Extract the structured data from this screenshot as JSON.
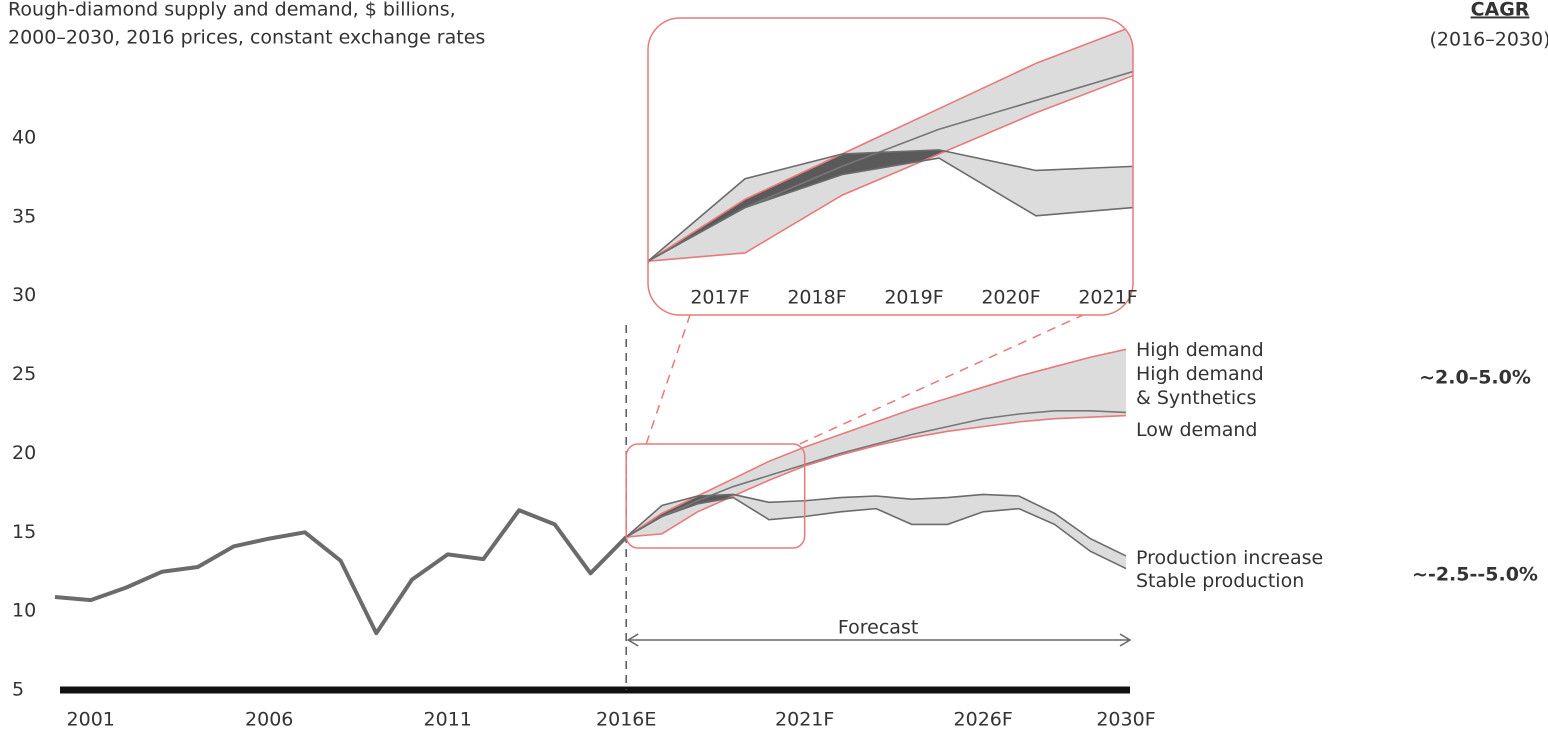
{
  "chart_data": {
    "type": "line",
    "title": "Rough-diamond supply and demand, $ billions,",
    "subtitle": "2000–2030, 2016 prices, constant exchange rates",
    "annotation": "Forecast",
    "cagr_title": "CAGR",
    "cagr_period": "(2016–2030)",
    "cagr_labels": [
      "~2.0–5.0%",
      "~-2.5--5.0%"
    ],
    "xlim": [
      2000,
      2030
    ],
    "ylim": [
      5,
      40
    ],
    "yticks": [
      5,
      10,
      15,
      20,
      25,
      30,
      35,
      40
    ],
    "xticks": [
      2001,
      2006,
      2011,
      {
        "value": 2016,
        "label": "2016E"
      },
      {
        "value": 2021,
        "label": "2021F"
      },
      {
        "value": 2026,
        "label": "2026F"
      },
      {
        "value": 2030,
        "label": "2030F"
      }
    ],
    "series": [
      {
        "color": "#6b6b6b",
        "x": [
          2000,
          2001,
          2002,
          2003,
          2004,
          2005,
          2006,
          2007,
          2008,
          2009,
          2010,
          2011,
          2012,
          2013,
          2014,
          2015,
          2016
        ],
        "values": [
          10.9,
          10.7,
          11.5,
          12.5,
          12.8,
          14.1,
          14.6,
          15.0,
          13.2,
          8.6,
          12.0,
          13.6,
          13.3,
          16.4,
          15.5,
          12.4,
          14.7
        ]
      },
      {
        "name": "High demand",
        "color": "#e87a7a",
        "x": [
          2016,
          2017,
          2018,
          2019,
          2020,
          2021,
          2022,
          2023,
          2024,
          2025,
          2026,
          2027,
          2028,
          2029,
          2030
        ],
        "values": [
          14.7,
          16.2,
          17.3,
          18.4,
          19.5,
          20.4,
          21.2,
          22.0,
          22.8,
          23.5,
          24.2,
          24.9,
          25.5,
          26.1,
          26.6
        ]
      },
      {
        "name": "High demand & Synthetics",
        "color": "#777777",
        "x": [
          2016,
          2017,
          2018,
          2019,
          2020,
          2021,
          2022,
          2023,
          2024,
          2025,
          2026,
          2027,
          2028,
          2029,
          2030
        ],
        "values": [
          14.7,
          16.0,
          17.0,
          17.9,
          18.6,
          19.3,
          20.0,
          20.6,
          21.2,
          21.7,
          22.2,
          22.5,
          22.7,
          22.7,
          22.6
        ]
      },
      {
        "name": "Low demand",
        "color": "#e87a7a",
        "x": [
          2016,
          2017,
          2018,
          2019,
          2020,
          2021,
          2022,
          2023,
          2024,
          2025,
          2026,
          2027,
          2028,
          2029,
          2030
        ],
        "values": [
          14.7,
          14.9,
          16.3,
          17.3,
          18.3,
          19.2,
          19.9,
          20.5,
          21.0,
          21.4,
          21.7,
          22.0,
          22.2,
          22.3,
          22.4
        ]
      },
      {
        "name": "Production increase",
        "color": "#6b6b6b",
        "x": [
          2016,
          2017,
          2018,
          2019,
          2020,
          2021,
          2022,
          2023,
          2024,
          2025,
          2026,
          2027,
          2028,
          2029,
          2030
        ],
        "values": [
          14.7,
          16.7,
          17.3,
          17.4,
          16.9,
          17.0,
          17.2,
          17.3,
          17.1,
          17.2,
          17.4,
          17.3,
          16.2,
          14.6,
          13.5
        ]
      },
      {
        "name": "Stable production",
        "color": "#6b6b6b",
        "x": [
          2016,
          2017,
          2018,
          2019,
          2020,
          2021,
          2022,
          2023,
          2024,
          2025,
          2026,
          2027,
          2028,
          2029,
          2030
        ],
        "values": [
          14.7,
          16.0,
          16.8,
          17.2,
          15.8,
          16.0,
          16.3,
          16.5,
          15.5,
          15.5,
          16.3,
          16.5,
          15.5,
          13.8,
          12.7
        ]
      }
    ],
    "inset": {
      "xlim": [
        2016,
        2021
      ],
      "ylim": [
        14,
        20.6
      ],
      "xticks": [
        {
          "value": 2017,
          "label": "2017F"
        },
        {
          "value": 2018,
          "label": "2018F"
        },
        {
          "value": 2019,
          "label": "2019F"
        },
        {
          "value": 2020,
          "label": "2020F"
        },
        {
          "value": 2021,
          "label": "2021F"
        }
      ]
    }
  }
}
